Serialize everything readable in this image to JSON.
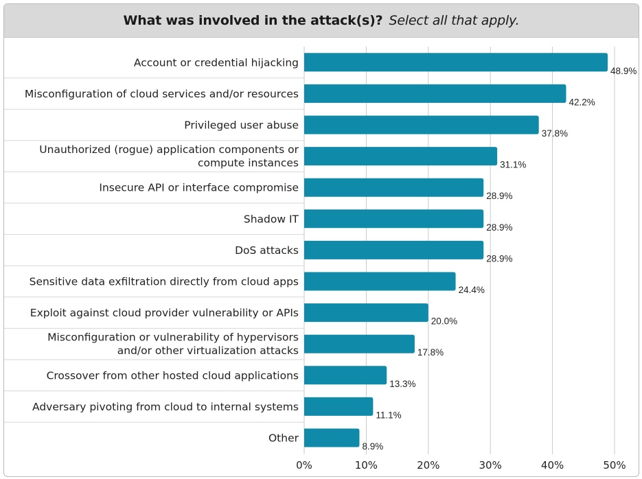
{
  "chart_data": {
    "type": "bar",
    "orientation": "horizontal",
    "title": "What was involved in the attack(s)?",
    "subtitle": "Select all that apply.",
    "categories": [
      [
        "Account or credential hijacking"
      ],
      [
        "Misconfiguration of cloud services and/or resources"
      ],
      [
        "Privileged user abuse"
      ],
      [
        "Unauthorized (rogue) application components or",
        "compute instances"
      ],
      [
        "Insecure API or interface compromise"
      ],
      [
        "Shadow IT"
      ],
      [
        "DoS attacks"
      ],
      [
        "Sensitive data exfiltration directly from cloud apps"
      ],
      [
        "Exploit against cloud provider vulnerability or APIs"
      ],
      [
        "Misconfiguration or vulnerability of hypervisors",
        "and/or other virtualization attacks"
      ],
      [
        "Crossover from other hosted cloud applications"
      ],
      [
        "Adversary pivoting from cloud to internal systems"
      ],
      [
        "Other"
      ]
    ],
    "values": [
      48.9,
      42.2,
      37.8,
      31.1,
      28.9,
      28.9,
      28.9,
      24.4,
      20.0,
      17.8,
      13.3,
      11.1,
      8.9
    ],
    "value_labels": [
      "48.9%",
      "42.2%",
      "37.8%",
      "31.1%",
      "28.9%",
      "28.9%",
      "28.9%",
      "24.4%",
      "20.0%",
      "17.8%",
      "13.3%",
      "11.1%",
      "8.9%"
    ],
    "xlim": [
      0,
      50
    ],
    "x_ticks": [
      0,
      10,
      20,
      30,
      40,
      50
    ],
    "x_tick_labels": [
      "0%",
      "10%",
      "20%",
      "30%",
      "40%",
      "50%"
    ],
    "grid": true,
    "bar_color": "#0f8aa8",
    "grid_color": "#c9c9c9"
  }
}
